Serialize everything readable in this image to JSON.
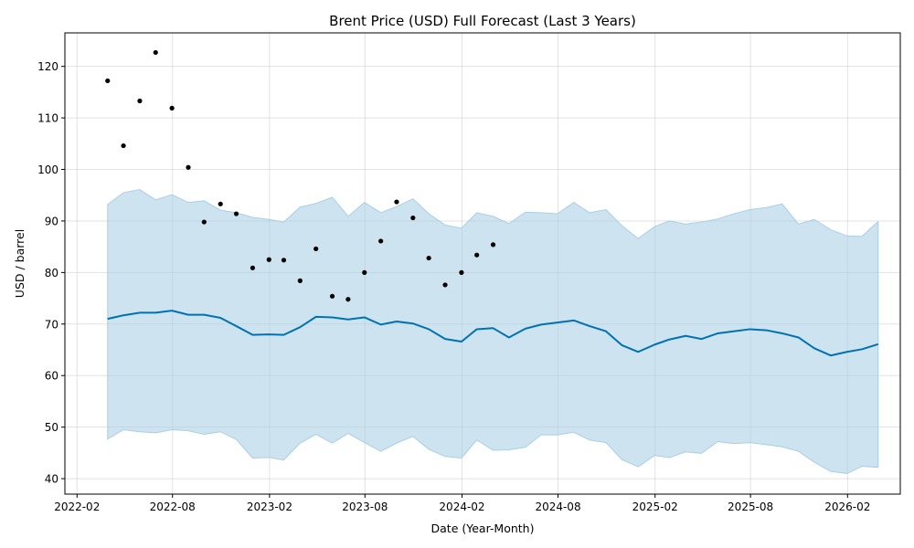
{
  "chart_data": {
    "type": "line",
    "title": "Brent Price (USD) Full Forecast (Last 3 Years)",
    "xlabel": "Date (Year-Month)",
    "ylabel": "USD / barrel",
    "xlim": [
      "2022-01-09",
      "2026-05-12"
    ],
    "ylim": [
      37,
      126.5
    ],
    "grid": true,
    "x_ticks": [
      "2022-02",
      "2022-08",
      "2023-02",
      "2023-08",
      "2024-02",
      "2024-08",
      "2025-02",
      "2025-08",
      "2026-02"
    ],
    "y_ticks": [
      40,
      50,
      60,
      70,
      80,
      90,
      100,
      110,
      120
    ],
    "colors": {
      "forecast": "#0072b2",
      "band": "#a9cfe5",
      "actual": "#000000"
    },
    "actual": {
      "dates": [
        "2022-03-31",
        "2022-04-30",
        "2022-05-31",
        "2022-06-30",
        "2022-07-31",
        "2022-08-31",
        "2022-09-30",
        "2022-10-31",
        "2022-11-30",
        "2022-12-31",
        "2023-01-31",
        "2023-02-28",
        "2023-03-31",
        "2023-04-30",
        "2023-05-31",
        "2023-06-30",
        "2023-07-31",
        "2023-08-31",
        "2023-09-30",
        "2023-10-31",
        "2023-11-30",
        "2023-12-31",
        "2024-01-31",
        "2024-02-29",
        "2024-03-31"
      ],
      "values": [
        117.2,
        104.6,
        113.3,
        122.7,
        111.9,
        100.4,
        89.8,
        93.3,
        91.4,
        80.9,
        82.5,
        82.4,
        78.4,
        84.6,
        75.4,
        74.8,
        80.0,
        86.1,
        93.7,
        90.6,
        82.8,
        77.6,
        80.0,
        83.4,
        85.4
      ]
    },
    "forecast": {
      "dates": [
        "2022-03-31",
        "2022-04-30",
        "2022-05-31",
        "2022-06-30",
        "2022-07-31",
        "2022-08-31",
        "2022-09-30",
        "2022-10-31",
        "2022-11-30",
        "2022-12-31",
        "2023-01-31",
        "2023-02-28",
        "2023-03-31",
        "2023-04-30",
        "2023-05-31",
        "2023-06-30",
        "2023-07-31",
        "2023-08-31",
        "2023-09-30",
        "2023-10-31",
        "2023-11-30",
        "2023-12-31",
        "2024-01-31",
        "2024-02-29",
        "2024-03-31",
        "2024-04-30",
        "2024-05-31",
        "2024-06-30",
        "2024-07-31",
        "2024-08-31",
        "2024-09-30",
        "2024-10-31",
        "2024-11-30",
        "2024-12-31",
        "2025-01-31",
        "2025-02-28",
        "2025-03-31",
        "2025-04-30",
        "2025-05-31",
        "2025-06-30",
        "2025-07-31",
        "2025-08-31",
        "2025-09-30",
        "2025-10-31",
        "2025-11-30",
        "2025-12-31",
        "2026-01-31",
        "2026-02-28",
        "2026-03-31"
      ],
      "yhat": [
        71.0,
        71.7,
        72.2,
        72.2,
        72.6,
        71.8,
        71.8,
        71.2,
        69.6,
        67.9,
        68.0,
        67.9,
        69.4,
        71.4,
        71.3,
        70.9,
        71.3,
        69.9,
        70.5,
        70.1,
        69.0,
        67.1,
        66.6,
        69.0,
        69.2,
        67.4,
        69.1,
        69.9,
        70.3,
        70.7,
        69.6,
        68.6,
        65.9,
        64.6,
        66.0,
        67.0,
        67.7,
        67.1,
        68.2,
        68.6,
        69.0,
        68.8,
        68.2,
        67.4,
        65.3,
        63.9,
        64.6,
        65.1,
        66.1
      ],
      "yhat_upper": [
        93.2,
        95.5,
        96.1,
        94.1,
        95.1,
        93.6,
        93.9,
        92.1,
        91.6,
        90.7,
        90.3,
        89.8,
        92.7,
        93.4,
        94.6,
        90.9,
        93.6,
        91.6,
        92.8,
        94.3,
        91.4,
        89.2,
        88.6,
        91.6,
        90.9,
        89.5,
        91.7,
        91.6,
        91.4,
        93.6,
        91.6,
        92.2,
        89.1,
        86.6,
        88.9,
        90.0,
        89.4,
        89.8,
        90.4,
        91.4,
        92.2,
        92.6,
        93.3,
        89.4,
        90.3,
        88.3,
        87.1,
        87.0,
        89.9
      ],
      "yhat_lower": [
        47.7,
        49.5,
        49.1,
        48.9,
        49.5,
        49.3,
        48.6,
        49.1,
        47.6,
        44.0,
        44.1,
        43.6,
        46.9,
        48.6,
        46.9,
        48.8,
        47.0,
        45.3,
        46.9,
        48.2,
        45.7,
        44.3,
        44.0,
        47.5,
        45.5,
        45.6,
        46.1,
        48.5,
        48.5,
        49.0,
        47.5,
        47.0,
        43.7,
        42.3,
        44.5,
        44.1,
        45.2,
        44.9,
        47.2,
        46.8,
        47.0,
        46.6,
        46.2,
        45.3,
        43.2,
        41.4,
        41.0,
        42.4,
        42.2
      ]
    }
  }
}
